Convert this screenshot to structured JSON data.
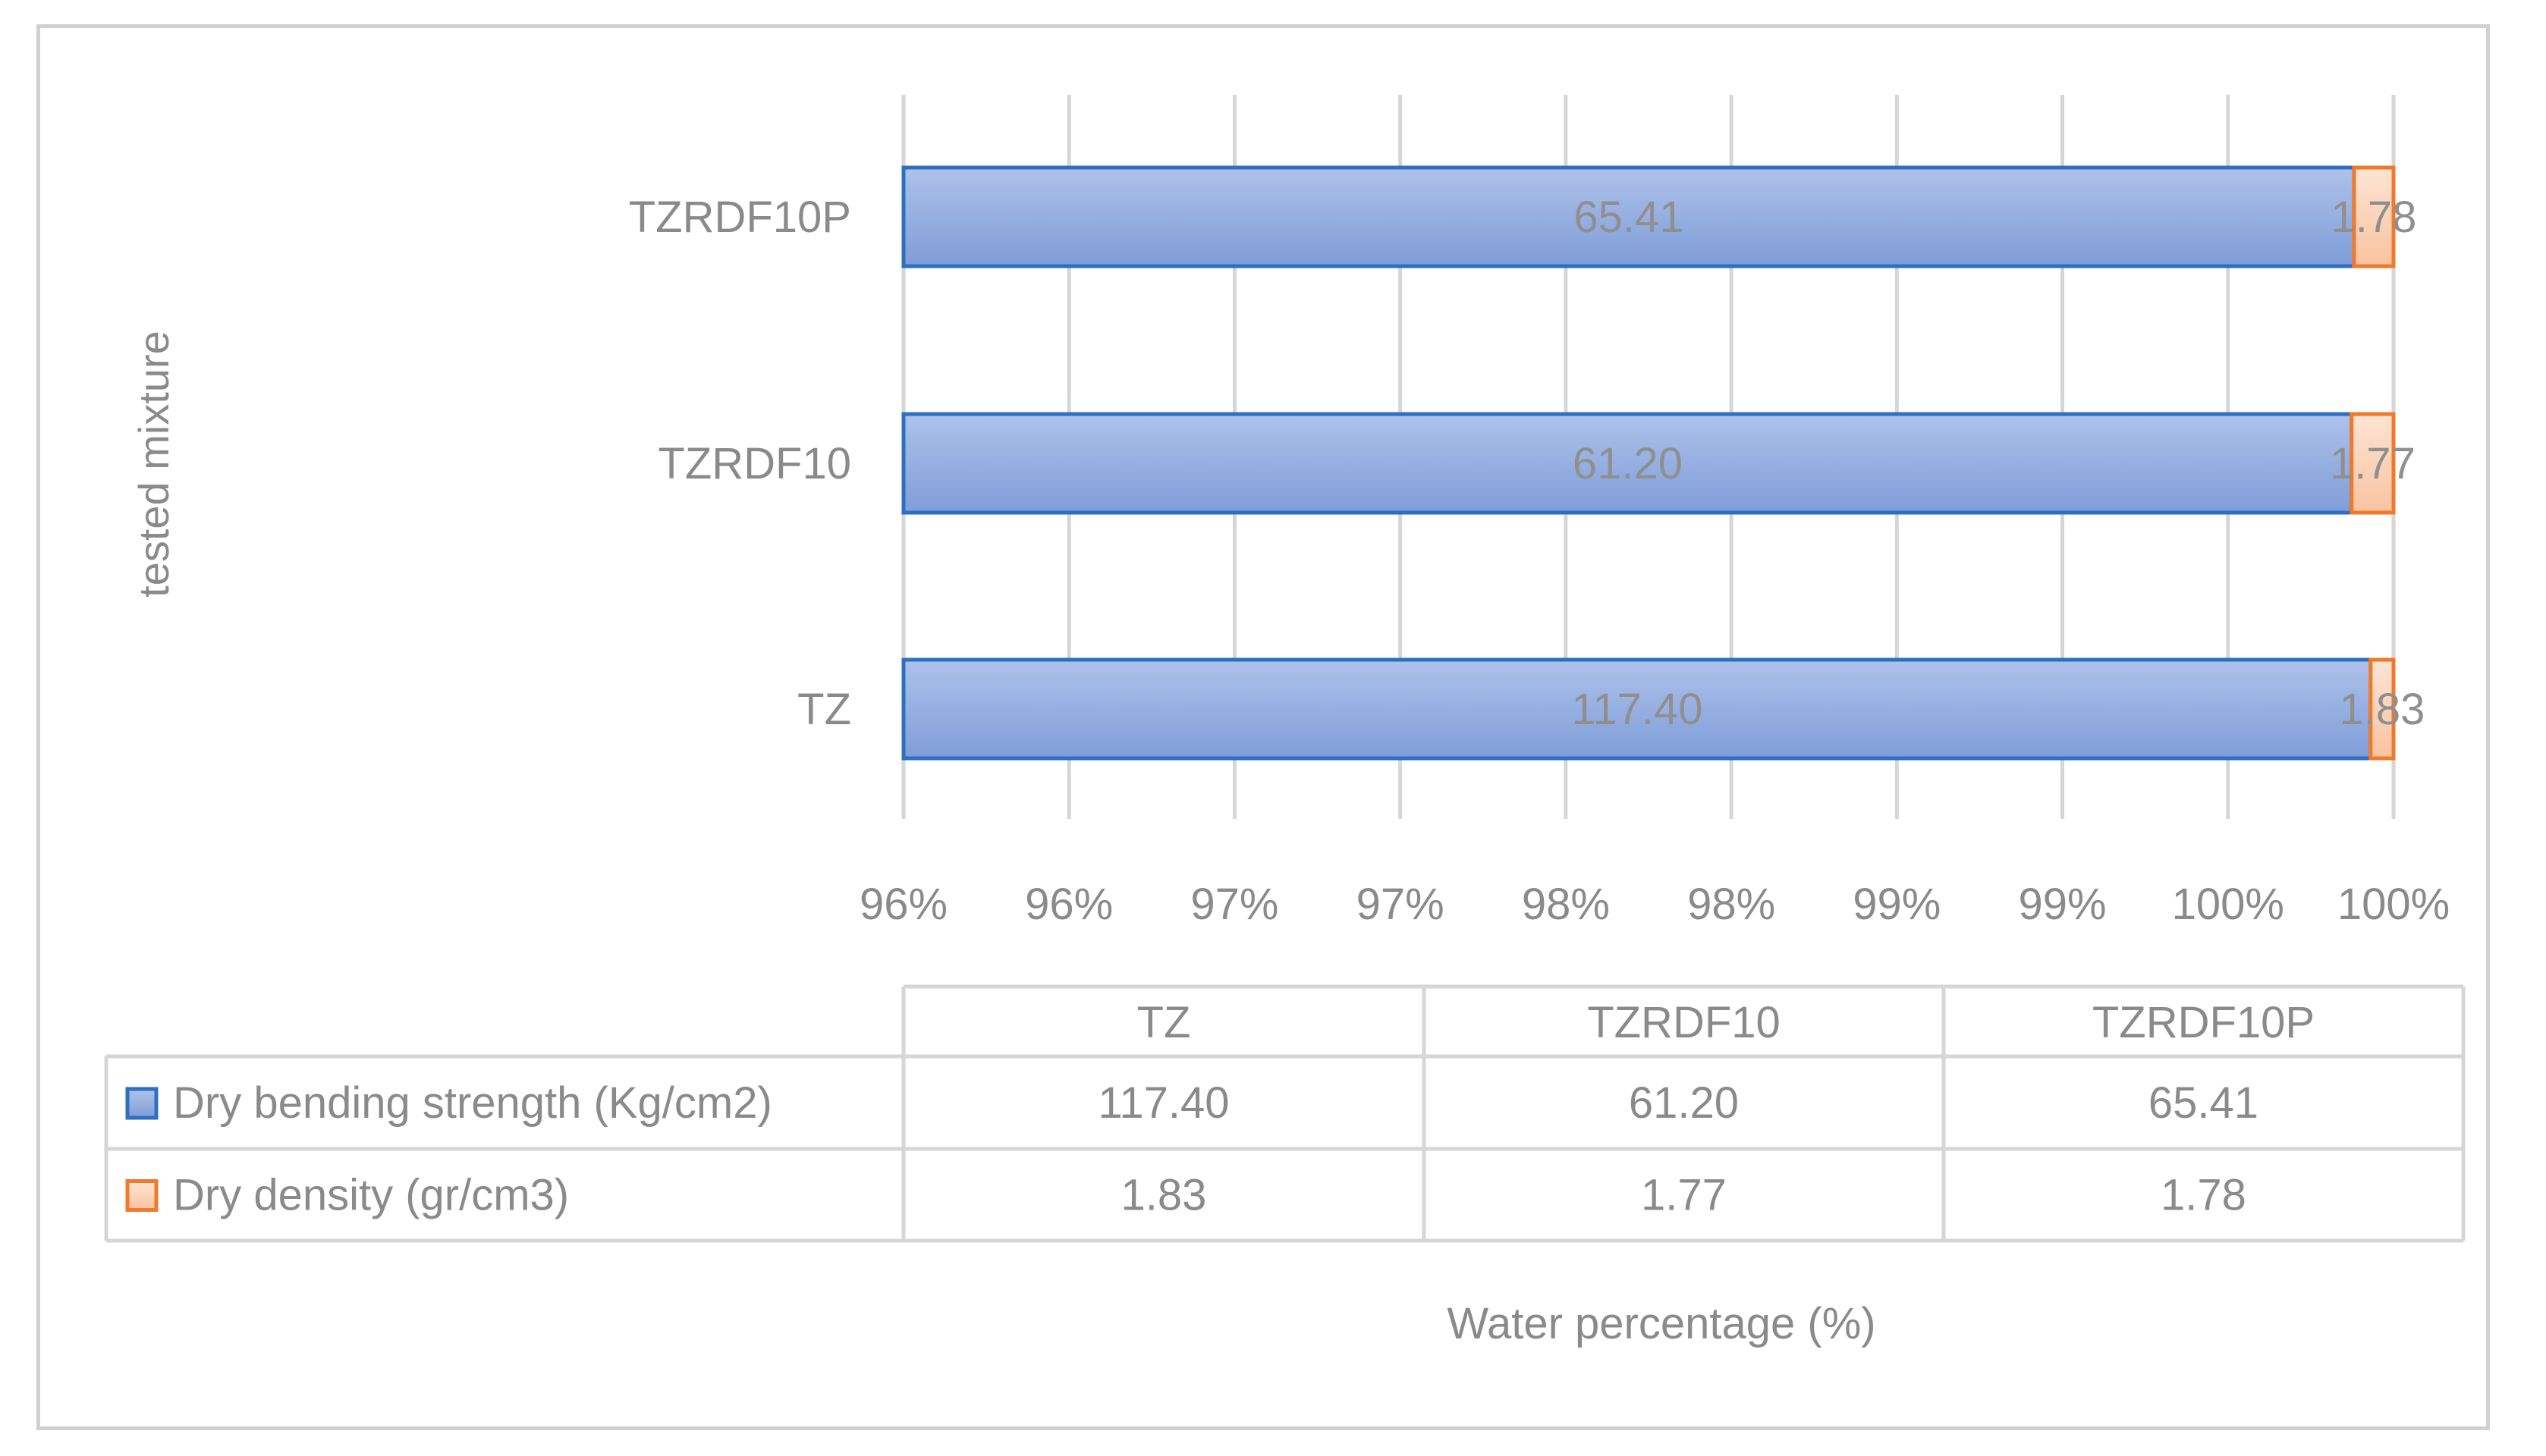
{
  "chart_data": {
    "type": "bar",
    "orientation": "horizontal",
    "stacking": "100-percent",
    "categories": [
      "TZ",
      "TZRDF10",
      "TZRDF10P"
    ],
    "series": [
      {
        "name": "Dry bending strength (Kg/cm2)",
        "values": [
          117.4,
          61.2,
          65.41
        ],
        "labels": [
          "117.40",
          "61.20",
          "65.41"
        ],
        "color": "#4472c4"
      },
      {
        "name": "Dry density (gr/cm3)",
        "values": [
          1.83,
          1.77,
          1.78
        ],
        "labels": [
          "1.83",
          "1.77",
          "1.78"
        ],
        "color": "#ed7d31"
      }
    ],
    "xlabel": "Water percentage (%)",
    "ylabel": "tested mixture",
    "x_ticks": [
      "96%",
      "96%",
      "97%",
      "97%",
      "98%",
      "98%",
      "99%",
      "99%",
      "100%",
      "100%"
    ],
    "xlim": [
      0.955,
      1.0
    ],
    "grid": true,
    "legend": "data-table",
    "data_table": {
      "header": [
        "TZ",
        "TZRDF10",
        "TZRDF10P"
      ]
    }
  }
}
